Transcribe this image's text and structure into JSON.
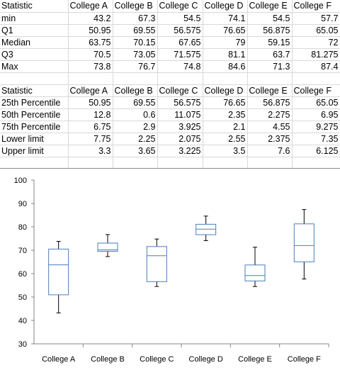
{
  "table1": {
    "header": [
      "Statistic",
      "College A",
      "College B",
      "College C",
      "College D",
      "College E",
      "College F"
    ],
    "rows": [
      [
        "min",
        "43.2",
        "67.3",
        "54.5",
        "74.1",
        "54.5",
        "57.7"
      ],
      [
        "Q1",
        "50.95",
        "69.55",
        "56.575",
        "76.65",
        "56.875",
        "65.05"
      ],
      [
        "Median",
        "63.75",
        "70.15",
        "67.65",
        "79",
        "59.15",
        "72"
      ],
      [
        "Q3",
        "70.5",
        "73.05",
        "71.575",
        "81.1",
        "63.7",
        "81.275"
      ],
      [
        "Max",
        "73.8",
        "76.7",
        "74.8",
        "84.6",
        "71.3",
        "87.4"
      ]
    ]
  },
  "table2": {
    "header": [
      "Statistic",
      "College A",
      "College B",
      "College C",
      "College D",
      "College E",
      "College F"
    ],
    "rows": [
      [
        "25th Percentile",
        "50.95",
        "69.55",
        "56.575",
        "76.65",
        "56.875",
        "65.05"
      ],
      [
        "50th Percentile",
        "12.8",
        "0.6",
        "11.075",
        "2.35",
        "2.275",
        "6.95"
      ],
      [
        "75th Percentile",
        "6.75",
        "2.9",
        "3.925",
        "2.1",
        "4.55",
        "9.275"
      ],
      [
        "Lower limit",
        "7.75",
        "2.25",
        "2.075",
        "2.55",
        "2.375",
        "7.35"
      ],
      [
        "Upper limit",
        "3.3",
        "3.65",
        "3.225",
        "3.5",
        "7.6",
        "6.125"
      ]
    ]
  },
  "chart_data": {
    "type": "box",
    "categories": [
      "College A",
      "College B",
      "College C",
      "College D",
      "College E",
      "College F"
    ],
    "min": [
      43.2,
      67.3,
      54.5,
      74.1,
      54.5,
      57.7
    ],
    "q1": [
      50.95,
      69.55,
      56.575,
      76.65,
      56.875,
      65.05
    ],
    "median": [
      63.75,
      70.15,
      67.65,
      79,
      59.15,
      72
    ],
    "q3": [
      70.5,
      73.05,
      71.575,
      81.1,
      63.7,
      81.275
    ],
    "max": [
      73.8,
      76.7,
      74.8,
      84.6,
      71.3,
      87.4
    ],
    "ylim": [
      30,
      100
    ],
    "yticks": [
      "30",
      "40",
      "50",
      "60",
      "70",
      "80",
      "90",
      "100"
    ],
    "box_color": "#4a7ebb",
    "whisker_color": "#000000",
    "axis_color": "#868686",
    "gridlines": false
  }
}
